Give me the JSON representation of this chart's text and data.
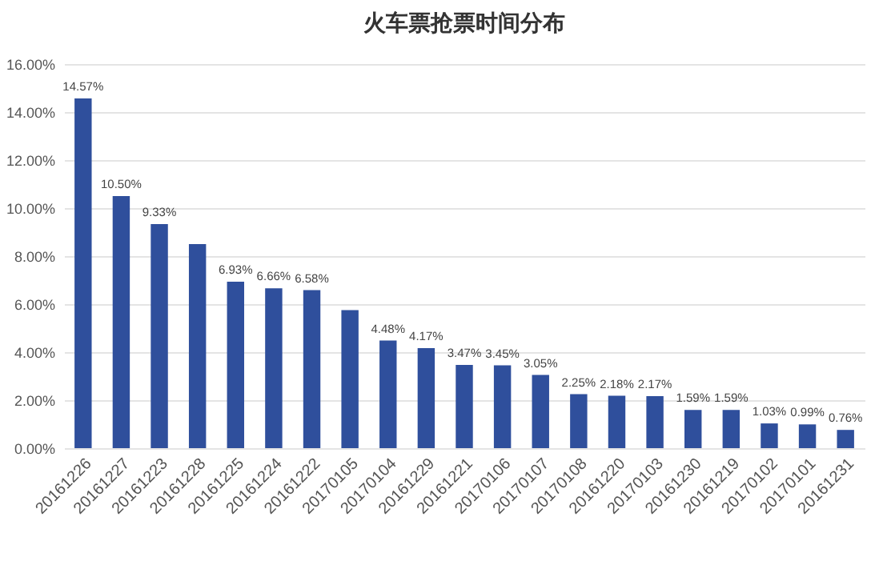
{
  "chart_data": {
    "type": "bar",
    "title": "火车票抢票时间分布",
    "categories": [
      "20161226",
      "20161227",
      "20161223",
      "20161228",
      "20161225",
      "20161224",
      "20161222",
      "20170105",
      "20170104",
      "20161229",
      "20161221",
      "20170106",
      "20170107",
      "20170108",
      "20161220",
      "20170103",
      "20161230",
      "20161219",
      "20170102",
      "20170101",
      "20161231"
    ],
    "values": [
      14.57,
      10.5,
      9.33,
      8.5,
      6.93,
      6.66,
      6.58,
      5.75,
      4.48,
      4.17,
      3.47,
      3.45,
      3.05,
      2.25,
      2.18,
      2.17,
      1.59,
      1.59,
      1.03,
      0.99,
      0.76
    ],
    "value_labels": [
      "14.57%",
      "10.50%",
      "9.33%",
      null,
      "6.93%",
      "6.66%",
      "6.58%",
      null,
      "4.48%",
      "4.17%",
      "3.47%",
      "3.45%",
      "3.05%",
      "2.25%",
      "2.18%",
      "2.17%",
      "1.59%",
      "1.59%",
      "1.03%",
      "0.99%",
      "0.76%"
    ],
    "color": "#2f4f9c",
    "ylim": [
      0,
      16
    ],
    "yticks": [
      {
        "value": 0,
        "label": "0.00%"
      },
      {
        "value": 2,
        "label": "2.00%"
      },
      {
        "value": 4,
        "label": "4.00%"
      },
      {
        "value": 6,
        "label": "6.00%"
      },
      {
        "value": 8,
        "label": "8.00%"
      },
      {
        "value": 10,
        "label": "10.00%"
      },
      {
        "value": 12,
        "label": "12.00%"
      },
      {
        "value": 14,
        "label": "14.00%"
      },
      {
        "value": 16,
        "label": "16.00%"
      }
    ],
    "grid": "y"
  }
}
